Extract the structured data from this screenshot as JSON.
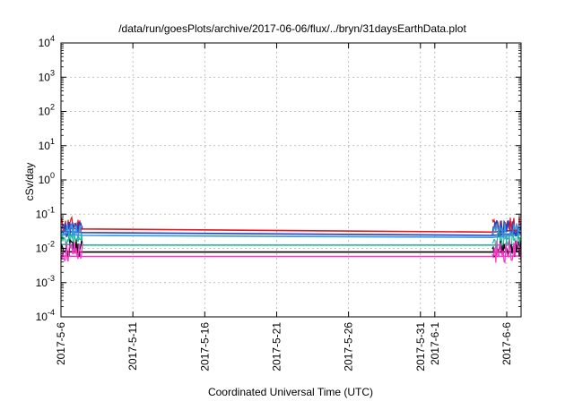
{
  "chart_data": {
    "type": "line",
    "title": "/data/run/goesPlots/archive/2017-06-06/flux/../bryn/31daysEarthData.plot",
    "xlabel": "Coordinated Universal Time (UTC)",
    "ylabel": "cSv/day",
    "yscale": "log",
    "ylim": [
      0.0001,
      10000
    ],
    "xlim": [
      "2017-05-06",
      "2017-06-07"
    ],
    "grid": true,
    "legend": "none",
    "x_ticks": [
      "2017-5-6",
      "2017-5-11",
      "2017-5-16",
      "2017-5-21",
      "2017-5-26",
      "2017-5-31",
      "2017-6-1",
      "2017-6-6"
    ],
    "y_ticks": [
      {
        "base": "10",
        "exp": "-4"
      },
      {
        "base": "10",
        "exp": "-3"
      },
      {
        "base": "10",
        "exp": "-2"
      },
      {
        "base": "10",
        "exp": "-1"
      },
      {
        "base": "10",
        "exp": "0"
      },
      {
        "base": "10",
        "exp": "1"
      },
      {
        "base": "10",
        "exp": "2"
      },
      {
        "base": "10",
        "exp": "3"
      },
      {
        "base": "10",
        "exp": "4"
      }
    ],
    "series": [
      {
        "color": "#e8141e",
        "x": [
          "2017-05-06",
          "2017-05-07.5",
          "2017-06-05",
          "2017-06-07"
        ],
        "y": [
          0.04,
          0.037,
          0.03,
          0.035
        ]
      },
      {
        "color": "#1f3fcc",
        "x": [
          "2017-05-06",
          "2017-05-07.5",
          "2017-06-05",
          "2017-06-07"
        ],
        "y": [
          0.032,
          0.029,
          0.024,
          0.028
        ]
      },
      {
        "color": "#3399dd",
        "x": [
          "2017-05-06",
          "2017-05-07.5",
          "2017-06-05",
          "2017-06-07"
        ],
        "y": [
          0.026,
          0.024,
          0.021,
          0.025
        ]
      },
      {
        "color": "#22bb99",
        "x": [
          "2017-05-06",
          "2017-05-07.5",
          "2017-06-05",
          "2017-06-07"
        ],
        "y": [
          0.013,
          0.0125,
          0.0125,
          0.013
        ]
      },
      {
        "color": "#000000",
        "x": [
          "2017-05-06",
          "2017-05-07.5",
          "2017-06-05",
          "2017-06-07"
        ],
        "y": [
          0.008,
          0.0078,
          0.0078,
          0.008
        ]
      },
      {
        "color": "#ff33cc",
        "x": [
          "2017-05-06",
          "2017-05-07.5",
          "2017-06-05",
          "2017-06-07"
        ],
        "y": [
          0.006,
          0.0058,
          0.0058,
          0.006
        ]
      }
    ]
  }
}
